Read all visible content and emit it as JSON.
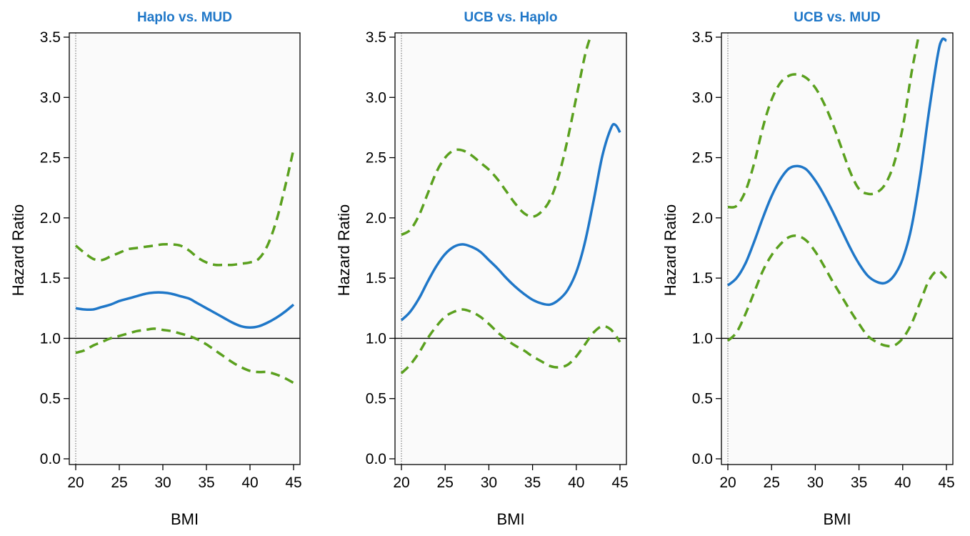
{
  "chart_data": [
    {
      "type": "line",
      "title": "Haplo vs. MUD",
      "xlabel": "BMI",
      "ylabel": "Hazard Ratio",
      "xlim": [
        20,
        45
      ],
      "ylim": [
        0,
        3.5
      ],
      "xticks": [
        "20",
        "25",
        "30",
        "35",
        "40",
        "45"
      ],
      "yticks": [
        "0.0",
        "0.5",
        "1.0",
        "1.5",
        "2.0",
        "2.5",
        "3.0",
        "3.5"
      ],
      "reference_y": 1.0,
      "reference_x": 20,
      "grid": false,
      "series": [
        {
          "role": "estimate",
          "color": "#1f77c8",
          "style": "solid",
          "x": [
            20,
            21,
            22,
            23,
            24,
            25,
            26,
            27,
            28,
            29,
            30,
            31,
            32,
            33,
            34,
            35,
            36,
            37,
            38,
            39,
            40,
            41,
            42,
            43,
            44,
            45
          ],
          "y": [
            1.25,
            1.24,
            1.24,
            1.26,
            1.28,
            1.31,
            1.33,
            1.35,
            1.37,
            1.38,
            1.38,
            1.37,
            1.35,
            1.33,
            1.29,
            1.25,
            1.21,
            1.17,
            1.13,
            1.1,
            1.09,
            1.1,
            1.13,
            1.17,
            1.22,
            1.28
          ]
        },
        {
          "role": "upper",
          "color": "#5aa01e",
          "style": "dashed",
          "x": [
            20,
            21,
            22,
            23,
            24,
            25,
            26,
            27,
            28,
            29,
            30,
            31,
            32,
            33,
            34,
            35,
            36,
            37,
            38,
            39,
            40,
            41,
            42,
            43,
            44,
            45
          ],
          "y": [
            1.77,
            1.71,
            1.66,
            1.65,
            1.68,
            1.71,
            1.74,
            1.75,
            1.76,
            1.77,
            1.78,
            1.78,
            1.77,
            1.73,
            1.67,
            1.63,
            1.61,
            1.61,
            1.61,
            1.62,
            1.63,
            1.66,
            1.77,
            1.97,
            2.25,
            2.57
          ]
        },
        {
          "role": "lower",
          "color": "#5aa01e",
          "style": "dashed",
          "x": [
            20,
            21,
            22,
            23,
            24,
            25,
            26,
            27,
            28,
            29,
            30,
            31,
            32,
            33,
            34,
            35,
            36,
            37,
            38,
            39,
            40,
            41,
            42,
            43,
            44,
            45
          ],
          "y": [
            0.88,
            0.9,
            0.94,
            0.97,
            1.0,
            1.02,
            1.04,
            1.06,
            1.07,
            1.08,
            1.07,
            1.06,
            1.04,
            1.02,
            0.99,
            0.95,
            0.9,
            0.85,
            0.8,
            0.76,
            0.73,
            0.72,
            0.72,
            0.7,
            0.67,
            0.63
          ]
        }
      ]
    },
    {
      "type": "line",
      "title": "UCB vs. Haplo",
      "xlabel": "BMI",
      "ylabel": "Hazard Ratio",
      "xlim": [
        20,
        45
      ],
      "ylim": [
        0,
        3.5
      ],
      "xticks": [
        "20",
        "25",
        "30",
        "35",
        "40",
        "45"
      ],
      "yticks": [
        "0.0",
        "0.5",
        "1.0",
        "1.5",
        "2.0",
        "2.5",
        "3.0",
        "3.5"
      ],
      "reference_y": 1.0,
      "reference_x": 20,
      "grid": false,
      "series": [
        {
          "role": "estimate",
          "color": "#1f77c8",
          "style": "solid",
          "x": [
            20,
            21,
            22,
            23,
            24,
            25,
            26,
            27,
            28,
            29,
            30,
            31,
            32,
            33,
            34,
            35,
            36,
            37,
            38,
            39,
            40,
            41,
            42,
            43,
            44,
            44.5,
            45
          ],
          "y": [
            1.15,
            1.22,
            1.33,
            1.47,
            1.6,
            1.7,
            1.76,
            1.78,
            1.76,
            1.72,
            1.65,
            1.58,
            1.5,
            1.43,
            1.37,
            1.32,
            1.29,
            1.28,
            1.32,
            1.4,
            1.55,
            1.8,
            2.15,
            2.52,
            2.75,
            2.77,
            2.71
          ]
        },
        {
          "role": "upper",
          "color": "#5aa01e",
          "style": "dashed",
          "x": [
            20,
            21,
            22,
            23,
            24,
            25,
            26,
            27,
            28,
            29,
            30,
            31,
            32,
            33,
            34,
            35,
            36,
            37,
            38,
            39,
            40,
            41,
            41.6
          ],
          "y": [
            1.86,
            1.9,
            2.02,
            2.2,
            2.38,
            2.5,
            2.56,
            2.56,
            2.52,
            2.46,
            2.4,
            2.32,
            2.22,
            2.12,
            2.04,
            2.01,
            2.05,
            2.15,
            2.35,
            2.65,
            3.0,
            3.35,
            3.5
          ]
        },
        {
          "role": "lower",
          "color": "#5aa01e",
          "style": "dashed",
          "x": [
            20,
            21,
            22,
            23,
            24,
            25,
            26,
            27,
            28,
            29,
            30,
            31,
            32,
            33,
            34,
            35,
            36,
            37,
            38,
            39,
            40,
            41,
            42,
            43,
            44,
            45
          ],
          "y": [
            0.71,
            0.78,
            0.88,
            1.0,
            1.1,
            1.18,
            1.22,
            1.24,
            1.22,
            1.18,
            1.12,
            1.05,
            0.99,
            0.94,
            0.9,
            0.85,
            0.81,
            0.77,
            0.76,
            0.78,
            0.85,
            0.95,
            1.05,
            1.1,
            1.07,
            0.97
          ]
        }
      ]
    },
    {
      "type": "line",
      "title": "UCB vs. MUD",
      "xlabel": "BMI",
      "ylabel": "Hazard Ratio",
      "xlim": [
        20,
        45
      ],
      "ylim": [
        0,
        3.5
      ],
      "xticks": [
        "20",
        "25",
        "30",
        "35",
        "40",
        "45"
      ],
      "yticks": [
        "0.0",
        "0.5",
        "1.0",
        "1.5",
        "2.0",
        "2.5",
        "3.0",
        "3.5"
      ],
      "reference_y": 1.0,
      "reference_x": 20,
      "grid": false,
      "series": [
        {
          "role": "estimate",
          "color": "#1f77c8",
          "style": "solid",
          "x": [
            20,
            21,
            22,
            23,
            24,
            25,
            26,
            27,
            28,
            29,
            30,
            31,
            32,
            33,
            34,
            35,
            36,
            37,
            38,
            39,
            40,
            41,
            42,
            43,
            44,
            44.5,
            45
          ],
          "y": [
            1.44,
            1.5,
            1.62,
            1.8,
            2.0,
            2.18,
            2.32,
            2.41,
            2.43,
            2.4,
            2.31,
            2.19,
            2.05,
            1.9,
            1.75,
            1.62,
            1.52,
            1.47,
            1.46,
            1.52,
            1.66,
            1.92,
            2.35,
            2.88,
            3.35,
            3.48,
            3.47
          ]
        },
        {
          "role": "upper",
          "color": "#5aa01e",
          "style": "dashed",
          "x": [
            20,
            21,
            22,
            23,
            24,
            25,
            26,
            27,
            28,
            29,
            30,
            31,
            32,
            33,
            34,
            35,
            36,
            37,
            38,
            39,
            40,
            41,
            41.8
          ],
          "y": [
            2.09,
            2.1,
            2.22,
            2.45,
            2.75,
            2.98,
            3.12,
            3.18,
            3.19,
            3.16,
            3.08,
            2.95,
            2.78,
            2.58,
            2.38,
            2.24,
            2.2,
            2.21,
            2.28,
            2.45,
            2.75,
            3.2,
            3.5
          ]
        },
        {
          "role": "lower",
          "color": "#5aa01e",
          "style": "dashed",
          "x": [
            20,
            21,
            22,
            23,
            24,
            25,
            26,
            27,
            28,
            29,
            30,
            31,
            32,
            33,
            34,
            35,
            36,
            37,
            38,
            39,
            40,
            41,
            42,
            43,
            44,
            45
          ],
          "y": [
            0.98,
            1.05,
            1.2,
            1.38,
            1.56,
            1.69,
            1.78,
            1.84,
            1.85,
            1.81,
            1.72,
            1.6,
            1.47,
            1.35,
            1.23,
            1.12,
            1.02,
            0.97,
            0.94,
            0.94,
            1.0,
            1.12,
            1.3,
            1.48,
            1.56,
            1.5
          ]
        }
      ]
    }
  ]
}
